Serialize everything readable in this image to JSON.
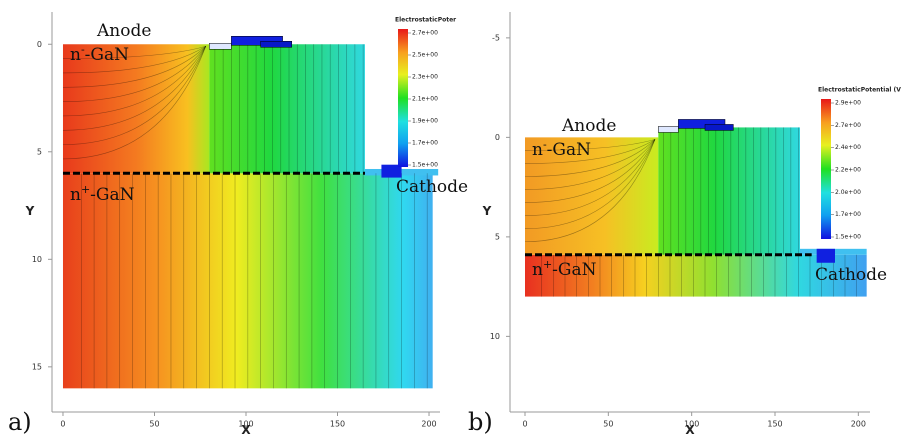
{
  "chart_data": [
    {
      "type": "contour",
      "label": "a)",
      "xlabel": "X",
      "ylabel": "Y",
      "xlim": [
        -6,
        206
      ],
      "ylim": [
        -1.5,
        17.1
      ],
      "y_inverted": true,
      "xticks": [
        0,
        50,
        100,
        150,
        200
      ],
      "yticks": [
        0,
        5,
        10,
        15
      ],
      "colorbar": {
        "title": "ElectrostaticPoter",
        "lim": [
          1.5,
          2.7
        ],
        "ticks": [
          {
            "value": 2.7,
            "label": "2.7e+00"
          },
          {
            "value": 2.5,
            "label": "2.5e+00"
          },
          {
            "value": 2.3,
            "label": "2.3e+00"
          },
          {
            "value": 2.1,
            "label": "2.1e+00"
          },
          {
            "value": 1.9,
            "label": "1.9e+00"
          },
          {
            "value": 1.7,
            "label": "1.7e+00"
          },
          {
            "value": 1.5,
            "label": "1.5e+00"
          }
        ]
      },
      "annotations": {
        "anode": "Anode",
        "n_minus": {
          "base": "n",
          "sup": "-",
          "rest": "-GaN"
        },
        "n_plus": {
          "base": "n",
          "sup": "+",
          "rest": "-GaN"
        },
        "cathode": "Cathode"
      }
    },
    {
      "type": "contour",
      "label": "b)",
      "xlabel": "X",
      "ylabel": "Y",
      "xlim": [
        -9,
        207
      ],
      "ylim": [
        -6.3,
        13.8
      ],
      "y_inverted": true,
      "xticks": [
        0,
        50,
        100,
        150,
        200
      ],
      "yticks": [
        -5,
        0,
        5,
        10
      ],
      "colorbar": {
        "title": "ElectrostaticPotential (V",
        "lim": [
          1.5,
          2.9
        ],
        "ticks": [
          {
            "value": 2.9,
            "label": "2.9e+00"
          },
          {
            "value": 2.667,
            "label": "2.7e+00"
          },
          {
            "value": 2.433,
            "label": "2.4e+00"
          },
          {
            "value": 2.2,
            "label": "2.2e+00"
          },
          {
            "value": 1.967,
            "label": "2.0e+00"
          },
          {
            "value": 1.733,
            "label": "1.7e+00"
          },
          {
            "value": 1.5,
            "label": "1.5e+00"
          }
        ]
      },
      "annotations": {
        "anode": "Anode",
        "n_minus": {
          "base": "n",
          "sup": "-",
          "rest": "-GaN"
        },
        "n_plus": {
          "base": "n",
          "sup": "+",
          "rest": "-GaN"
        },
        "cathode": "Cathode"
      }
    }
  ]
}
